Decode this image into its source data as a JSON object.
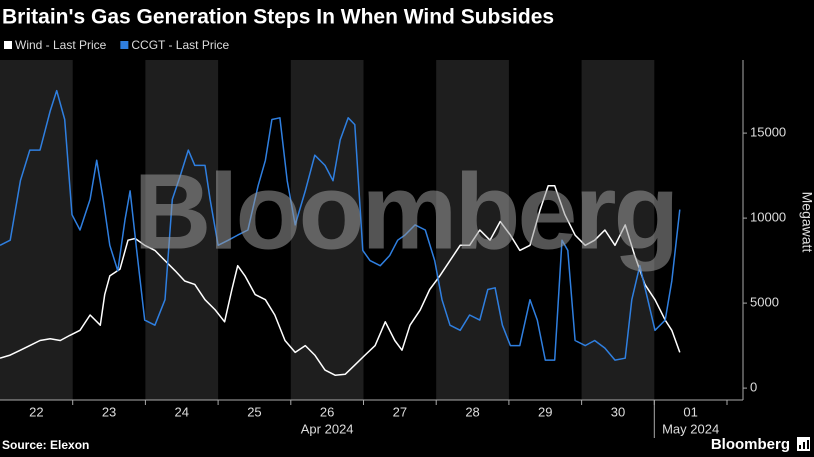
{
  "chart_data": {
    "type": "line",
    "title": "Britain's Gas Generation Steps In When Wind Subsides",
    "y_label": "Megawatt",
    "source": "Source: Elexon",
    "brand": "Bloomberg",
    "watermark": "Bloomberg",
    "xlim": [
      0,
      10.22
    ],
    "xticks": [
      {
        "value": 0.5,
        "label": "22"
      },
      {
        "value": 1.5,
        "label": "23"
      },
      {
        "value": 2.5,
        "label": "24"
      },
      {
        "value": 3.5,
        "label": "25"
      },
      {
        "value": 4.5,
        "label": "26"
      },
      {
        "value": 5.5,
        "label": "27"
      },
      {
        "value": 6.5,
        "label": "28"
      },
      {
        "value": 7.5,
        "label": "29"
      },
      {
        "value": 8.5,
        "label": "30"
      },
      {
        "value": 9.5,
        "label": "01"
      }
    ],
    "x_groups": [
      {
        "label": "Apr 2024",
        "start": 0,
        "end": 9
      },
      {
        "label": "May 2024",
        "start": 9,
        "end": 10
      }
    ],
    "ylim": [
      -700,
      19300
    ],
    "yticks": [
      0,
      5000,
      10000,
      15000
    ],
    "shade_alternate_days": true,
    "series": [
      {
        "name": "Wind - Last Price",
        "color": "#ffffff",
        "x": [
          0,
          0.14,
          0.28,
          0.41,
          0.55,
          0.69,
          0.83,
          0.96,
          1.1,
          1.24,
          1.38,
          1.44,
          1.51,
          1.65,
          1.76,
          1.86,
          1.99,
          2.13,
          2.27,
          2.41,
          2.54,
          2.68,
          2.82,
          2.96,
          3.09,
          3.19,
          3.27,
          3.37,
          3.51,
          3.65,
          3.78,
          3.92,
          4.06,
          4.2,
          4.33,
          4.47,
          4.61,
          4.75,
          4.88,
          5.02,
          5.16,
          5.3,
          5.43,
          5.53,
          5.64,
          5.78,
          5.91,
          6.05,
          6.19,
          6.33,
          6.46,
          6.6,
          6.74,
          6.88,
          7.02,
          7.15,
          7.29,
          7.43,
          7.54,
          7.63,
          7.77,
          7.91,
          8.05,
          8.18,
          8.32,
          8.46,
          8.6,
          8.73,
          8.87,
          9.01,
          9.15,
          9.24,
          9.35
        ],
        "values": [
          1760,
          1940,
          2230,
          2500,
          2800,
          2900,
          2800,
          3100,
          3400,
          4300,
          3700,
          5500,
          6600,
          7000,
          8700,
          8800,
          8400,
          8100,
          7500,
          6900,
          6300,
          6100,
          5200,
          4600,
          3900,
          5800,
          7200,
          6600,
          5500,
          5200,
          4300,
          2800,
          2100,
          2500,
          1940,
          1060,
          760,
          820,
          1350,
          1940,
          2500,
          3900,
          2800,
          2230,
          3700,
          4600,
          5800,
          6600,
          7500,
          8400,
          8400,
          9300,
          8700,
          9800,
          9000,
          8100,
          8400,
          10500,
          11900,
          11900,
          10200,
          9000,
          8400,
          8700,
          9300,
          8400,
          9600,
          7800,
          6100,
          5200,
          4000,
          3400,
          2100
        ]
      },
      {
        "name": "CCGT - Last Price",
        "color": "#2f7fe0",
        "x": [
          0,
          0.14,
          0.28,
          0.41,
          0.55,
          0.69,
          0.78,
          0.89,
          0.99,
          1.1,
          1.24,
          1.33,
          1.42,
          1.51,
          1.62,
          1.72,
          1.79,
          1.88,
          1.99,
          2.13,
          2.27,
          2.37,
          2.48,
          2.59,
          2.68,
          2.82,
          2.89,
          3.0,
          3.14,
          3.27,
          3.41,
          3.55,
          3.65,
          3.74,
          3.85,
          3.95,
          4.06,
          4.2,
          4.33,
          4.47,
          4.58,
          4.68,
          4.79,
          4.88,
          4.99,
          5.09,
          5.23,
          5.36,
          5.47,
          5.57,
          5.71,
          5.85,
          5.98,
          6.08,
          6.19,
          6.33,
          6.46,
          6.6,
          6.71,
          6.81,
          6.91,
          7.02,
          7.15,
          7.29,
          7.39,
          7.5,
          7.63,
          7.73,
          7.81,
          7.91,
          8.05,
          8.18,
          8.32,
          8.46,
          8.6,
          8.69,
          8.8,
          8.91,
          9.01,
          9.15,
          9.24,
          9.35
        ],
        "values": [
          8400,
          8700,
          12200,
          14000,
          14000,
          16300,
          17500,
          15800,
          10200,
          9300,
          11100,
          13400,
          11100,
          8400,
          6900,
          9900,
          11600,
          8100,
          4000,
          3700,
          5200,
          11100,
          12500,
          14000,
          13100,
          13100,
          11100,
          8400,
          8700,
          9000,
          9300,
          11900,
          13400,
          15800,
          15900,
          12200,
          9600,
          11600,
          13700,
          13100,
          12200,
          14600,
          15900,
          15500,
          8100,
          7500,
          7200,
          7800,
          8700,
          9000,
          9600,
          9300,
          7500,
          5200,
          3700,
          3400,
          4300,
          4000,
          5800,
          5900,
          3700,
          2500,
          2500,
          5200,
          4000,
          1650,
          1650,
          8700,
          8100,
          2800,
          2500,
          2800,
          2350,
          1650,
          1760,
          5200,
          7200,
          5200,
          3400,
          4000,
          6300,
          10500
        ]
      }
    ]
  }
}
